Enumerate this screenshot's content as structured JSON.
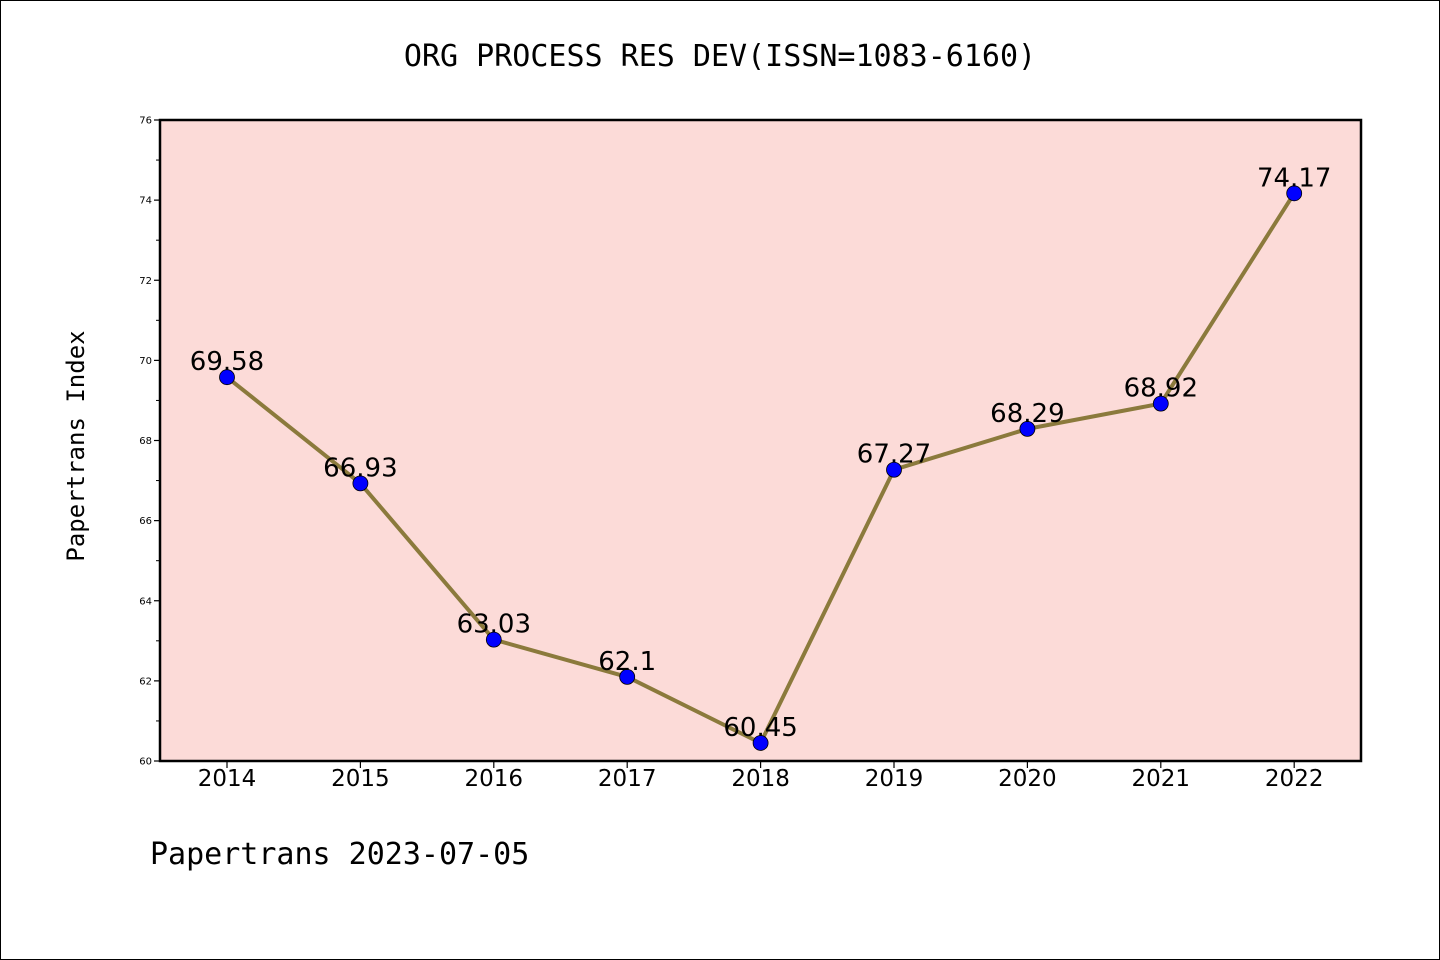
{
  "chart_data": {
    "type": "line",
    "title": "ORG PROCESS RES DEV(ISSN=1083-6160)",
    "ylabel": "Papertrans Index",
    "xlabel": "",
    "categories": [
      "2014",
      "2015",
      "2016",
      "2017",
      "2018",
      "2019",
      "2020",
      "2021",
      "2022"
    ],
    "series": [
      {
        "values": [
          69.58,
          66.93,
          63.03,
          62.1,
          60.45,
          67.27,
          68.29,
          68.92,
          74.17
        ],
        "labels": [
          "69.58",
          "66.93",
          "63.03",
          "62.1",
          "60.45",
          "67.27",
          "68.29",
          "68.92",
          "74.17"
        ]
      }
    ],
    "ylim": [
      60,
      76
    ],
    "yticks": [
      "60",
      "62",
      "64",
      "66",
      "68",
      "70",
      "72",
      "74",
      "76"
    ],
    "grid": false,
    "colors": {
      "plot_background": "#fcdbd8",
      "line": "#8b7a3c",
      "marker": "#0000ff"
    }
  },
  "footer": {
    "text": "Papertrans 2023-07-05"
  }
}
